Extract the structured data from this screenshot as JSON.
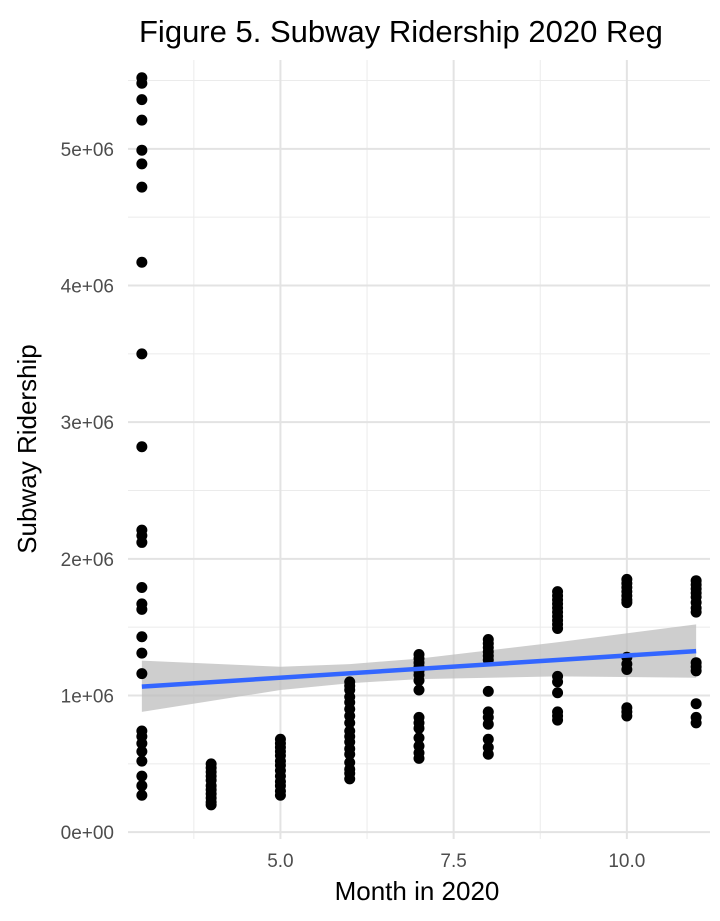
{
  "chart_data": {
    "type": "scatter",
    "title": "Figure 5. Subway Ridership 2020 Reg",
    "xlabel": "Month in 2020",
    "ylabel": "Subway Ridership",
    "xlim": [
      2.8,
      11.2
    ],
    "ylim": [
      -50000,
      5650000
    ],
    "x_ticks": [
      5.0,
      7.5,
      10.0
    ],
    "x_tick_labels": [
      "5.0",
      "7.5",
      "10.0"
    ],
    "x_minor_ticks": [
      3.75,
      6.25,
      8.75
    ],
    "y_ticks": [
      0,
      1000000,
      2000000,
      3000000,
      4000000,
      5000000
    ],
    "y_tick_labels": [
      "0e+00",
      "1e+06",
      "2e+06",
      "3e+06",
      "4e+06",
      "5e+06"
    ],
    "y_minor_ticks": [
      500000,
      1500000,
      2500000,
      3500000,
      4500000,
      5500000
    ],
    "grid": true,
    "colors": {
      "points": "#000000",
      "fit_line": "#3366FF",
      "ribbon": "#bdbdbd"
    },
    "points": [
      {
        "x": 3,
        "y": 5520000
      },
      {
        "x": 3,
        "y": 5480000
      },
      {
        "x": 3,
        "y": 5360000
      },
      {
        "x": 3,
        "y": 5210000
      },
      {
        "x": 3,
        "y": 4990000
      },
      {
        "x": 3,
        "y": 4890000
      },
      {
        "x": 3,
        "y": 4720000
      },
      {
        "x": 3,
        "y": 4170000
      },
      {
        "x": 3,
        "y": 3500000
      },
      {
        "x": 3,
        "y": 2820000
      },
      {
        "x": 3,
        "y": 2210000
      },
      {
        "x": 3,
        "y": 2170000
      },
      {
        "x": 3,
        "y": 2120000
      },
      {
        "x": 3,
        "y": 1790000
      },
      {
        "x": 3,
        "y": 1670000
      },
      {
        "x": 3,
        "y": 1630000
      },
      {
        "x": 3,
        "y": 1430000
      },
      {
        "x": 3,
        "y": 1310000
      },
      {
        "x": 3,
        "y": 1160000
      },
      {
        "x": 3,
        "y": 740000
      },
      {
        "x": 3,
        "y": 700000
      },
      {
        "x": 3,
        "y": 650000
      },
      {
        "x": 3,
        "y": 590000
      },
      {
        "x": 3,
        "y": 520000
      },
      {
        "x": 3,
        "y": 410000
      },
      {
        "x": 3,
        "y": 340000
      },
      {
        "x": 3,
        "y": 270000
      },
      {
        "x": 4,
        "y": 500000
      },
      {
        "x": 4,
        "y": 470000
      },
      {
        "x": 4,
        "y": 440000
      },
      {
        "x": 4,
        "y": 410000
      },
      {
        "x": 4,
        "y": 380000
      },
      {
        "x": 4,
        "y": 340000
      },
      {
        "x": 4,
        "y": 310000
      },
      {
        "x": 4,
        "y": 280000
      },
      {
        "x": 4,
        "y": 250000
      },
      {
        "x": 4,
        "y": 220000
      },
      {
        "x": 4,
        "y": 200000
      },
      {
        "x": 5,
        "y": 680000
      },
      {
        "x": 5,
        "y": 650000
      },
      {
        "x": 5,
        "y": 620000
      },
      {
        "x": 5,
        "y": 590000
      },
      {
        "x": 5,
        "y": 560000
      },
      {
        "x": 5,
        "y": 520000
      },
      {
        "x": 5,
        "y": 490000
      },
      {
        "x": 5,
        "y": 450000
      },
      {
        "x": 5,
        "y": 410000
      },
      {
        "x": 5,
        "y": 370000
      },
      {
        "x": 5,
        "y": 340000
      },
      {
        "x": 5,
        "y": 300000
      },
      {
        "x": 5,
        "y": 270000
      },
      {
        "x": 6,
        "y": 1100000
      },
      {
        "x": 6,
        "y": 1070000
      },
      {
        "x": 6,
        "y": 1040000
      },
      {
        "x": 6,
        "y": 990000
      },
      {
        "x": 6,
        "y": 950000
      },
      {
        "x": 6,
        "y": 900000
      },
      {
        "x": 6,
        "y": 850000
      },
      {
        "x": 6,
        "y": 800000
      },
      {
        "x": 6,
        "y": 740000
      },
      {
        "x": 6,
        "y": 700000
      },
      {
        "x": 6,
        "y": 660000
      },
      {
        "x": 6,
        "y": 610000
      },
      {
        "x": 6,
        "y": 570000
      },
      {
        "x": 6,
        "y": 510000
      },
      {
        "x": 6,
        "y": 460000
      },
      {
        "x": 6,
        "y": 430000
      },
      {
        "x": 6,
        "y": 390000
      },
      {
        "x": 7,
        "y": 1300000
      },
      {
        "x": 7,
        "y": 1270000
      },
      {
        "x": 7,
        "y": 1240000
      },
      {
        "x": 7,
        "y": 1210000
      },
      {
        "x": 7,
        "y": 1180000
      },
      {
        "x": 7,
        "y": 1150000
      },
      {
        "x": 7,
        "y": 1110000
      },
      {
        "x": 7,
        "y": 1040000
      },
      {
        "x": 7,
        "y": 840000
      },
      {
        "x": 7,
        "y": 800000
      },
      {
        "x": 7,
        "y": 760000
      },
      {
        "x": 7,
        "y": 690000
      },
      {
        "x": 7,
        "y": 630000
      },
      {
        "x": 7,
        "y": 580000
      },
      {
        "x": 7,
        "y": 540000
      },
      {
        "x": 8,
        "y": 1410000
      },
      {
        "x": 8,
        "y": 1380000
      },
      {
        "x": 8,
        "y": 1350000
      },
      {
        "x": 8,
        "y": 1320000
      },
      {
        "x": 8,
        "y": 1290000
      },
      {
        "x": 8,
        "y": 1260000
      },
      {
        "x": 8,
        "y": 1030000
      },
      {
        "x": 8,
        "y": 880000
      },
      {
        "x": 8,
        "y": 840000
      },
      {
        "x": 8,
        "y": 790000
      },
      {
        "x": 8,
        "y": 680000
      },
      {
        "x": 8,
        "y": 620000
      },
      {
        "x": 8,
        "y": 570000
      },
      {
        "x": 9,
        "y": 1760000
      },
      {
        "x": 9,
        "y": 1730000
      },
      {
        "x": 9,
        "y": 1700000
      },
      {
        "x": 9,
        "y": 1670000
      },
      {
        "x": 9,
        "y": 1640000
      },
      {
        "x": 9,
        "y": 1610000
      },
      {
        "x": 9,
        "y": 1580000
      },
      {
        "x": 9,
        "y": 1550000
      },
      {
        "x": 9,
        "y": 1520000
      },
      {
        "x": 9,
        "y": 1490000
      },
      {
        "x": 9,
        "y": 1140000
      },
      {
        "x": 9,
        "y": 1100000
      },
      {
        "x": 9,
        "y": 1020000
      },
      {
        "x": 9,
        "y": 880000
      },
      {
        "x": 9,
        "y": 850000
      },
      {
        "x": 9,
        "y": 820000
      },
      {
        "x": 10,
        "y": 1850000
      },
      {
        "x": 10,
        "y": 1820000
      },
      {
        "x": 10,
        "y": 1790000
      },
      {
        "x": 10,
        "y": 1760000
      },
      {
        "x": 10,
        "y": 1730000
      },
      {
        "x": 10,
        "y": 1700000
      },
      {
        "x": 10,
        "y": 1680000
      },
      {
        "x": 10,
        "y": 1280000
      },
      {
        "x": 10,
        "y": 1230000
      },
      {
        "x": 10,
        "y": 1190000
      },
      {
        "x": 10,
        "y": 910000
      },
      {
        "x": 10,
        "y": 880000
      },
      {
        "x": 10,
        "y": 850000
      },
      {
        "x": 11,
        "y": 1840000
      },
      {
        "x": 11,
        "y": 1810000
      },
      {
        "x": 11,
        "y": 1780000
      },
      {
        "x": 11,
        "y": 1750000
      },
      {
        "x": 11,
        "y": 1720000
      },
      {
        "x": 11,
        "y": 1680000
      },
      {
        "x": 11,
        "y": 1640000
      },
      {
        "x": 11,
        "y": 1610000
      },
      {
        "x": 11,
        "y": 1240000
      },
      {
        "x": 11,
        "y": 1210000
      },
      {
        "x": 11,
        "y": 1180000
      },
      {
        "x": 11,
        "y": 940000
      },
      {
        "x": 11,
        "y": 840000
      },
      {
        "x": 11,
        "y": 800000
      }
    ],
    "fit_line": {
      "x": [
        3,
        11
      ],
      "y": [
        1065000,
        1325000
      ]
    },
    "ribbon": [
      {
        "x": 3,
        "lower": 880000,
        "upper": 1255000
      },
      {
        "x": 5,
        "lower": 1040000,
        "upper": 1210000
      },
      {
        "x": 6,
        "lower": 1090000,
        "upper": 1230000
      },
      {
        "x": 7,
        "lower": 1120000,
        "upper": 1270000
      },
      {
        "x": 9,
        "lower": 1140000,
        "upper": 1390000
      },
      {
        "x": 11,
        "lower": 1130000,
        "upper": 1520000
      }
    ]
  }
}
